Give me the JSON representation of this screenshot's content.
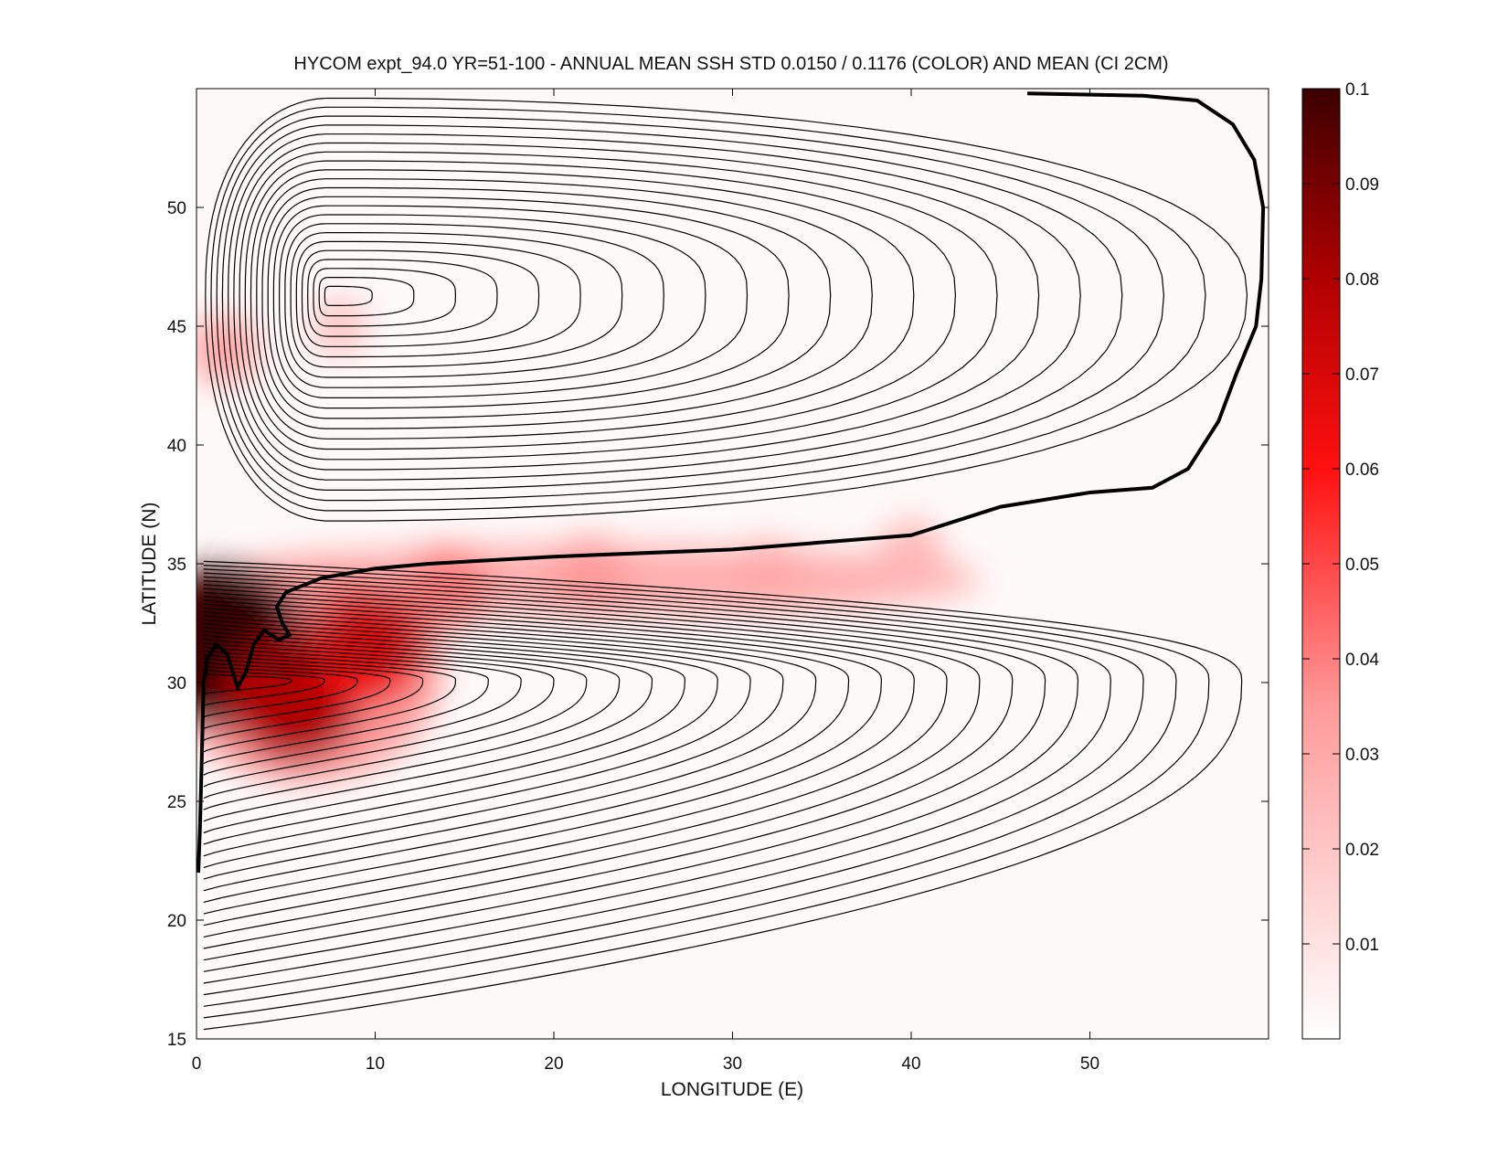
{
  "chart_data": {
    "type": "heatmap",
    "title": "HYCOM expt_94.0 YR=51-100 - ANNUAL MEAN SSH STD 0.0150 / 0.1176 (COLOR) AND MEAN (CI 2CM)",
    "xlabel": "LONGITUDE (E)",
    "ylabel": "LATITUDE (N)",
    "xlim": [
      0,
      60
    ],
    "ylim": [
      15,
      55
    ],
    "x_ticks": [
      0,
      10,
      20,
      30,
      40,
      50
    ],
    "y_ticks": [
      15,
      20,
      25,
      30,
      35,
      40,
      45,
      50
    ],
    "colorbar": {
      "ticks": [
        0.01,
        0.02,
        0.03,
        0.04,
        0.05,
        0.06,
        0.07,
        0.08,
        0.09,
        0.1
      ],
      "range": [
        0,
        0.1
      ],
      "colormap": [
        "#ffffff",
        "#ff0000",
        "#4a0000"
      ]
    },
    "contour_interval_cm": 2,
    "std_hotspots": [
      {
        "lon": 1.5,
        "lat": 31.5,
        "value": 0.1
      },
      {
        "lon": 5.5,
        "lat": 29.5,
        "value": 0.08
      },
      {
        "lon": 9.5,
        "lat": 31.5,
        "value": 0.065
      },
      {
        "lon": 14,
        "lat": 34,
        "value": 0.04
      },
      {
        "lon": 22,
        "lat": 34.5,
        "value": 0.035
      },
      {
        "lon": 32,
        "lat": 34.5,
        "value": 0.03
      },
      {
        "lon": 40,
        "lat": 35.5,
        "value": 0.025
      },
      {
        "lon": 1.5,
        "lat": 44,
        "value": 0.03
      },
      {
        "lon": 8,
        "lat": 45,
        "value": 0.02
      }
    ],
    "zero_contour": [
      [
        46.5,
        54.8
      ],
      [
        53,
        54.7
      ],
      [
        56,
        54.5
      ],
      [
        58,
        53.5
      ],
      [
        59.2,
        52
      ],
      [
        59.7,
        50
      ],
      [
        59.6,
        47
      ],
      [
        59.3,
        45
      ],
      [
        58.2,
        43
      ],
      [
        57.2,
        41
      ],
      [
        55.5,
        39
      ],
      [
        53.5,
        38.2
      ],
      [
        50,
        38
      ],
      [
        45,
        37.4
      ],
      [
        40,
        36.2
      ],
      [
        30,
        35.6
      ],
      [
        20,
        35.3
      ],
      [
        13,
        35.0
      ],
      [
        10,
        34.8
      ],
      [
        7,
        34.4
      ],
      [
        5,
        33.8
      ],
      [
        4.5,
        33.2
      ],
      [
        4.8,
        32.5
      ],
      [
        5.2,
        32
      ],
      [
        4.6,
        31.8
      ],
      [
        3.8,
        32.2
      ],
      [
        3.2,
        31.6
      ],
      [
        2.8,
        30.5
      ],
      [
        2.3,
        29.8
      ],
      [
        1.7,
        31.2
      ],
      [
        1.1,
        31.6
      ],
      [
        0.6,
        31.0
      ],
      [
        0.4,
        30.0
      ],
      [
        0.3,
        27
      ],
      [
        0.2,
        24
      ],
      [
        0.1,
        22
      ]
    ]
  }
}
